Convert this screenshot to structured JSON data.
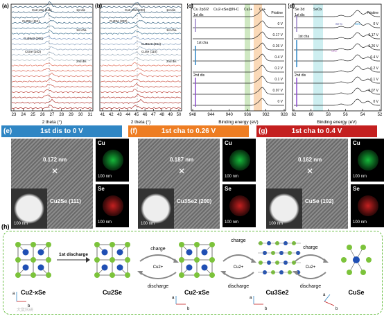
{
  "panels": {
    "a": {
      "label": "(a)",
      "xlabel": "2 theta (°)",
      "xticks": [
        "23",
        "24",
        "25",
        "26",
        "27",
        "28",
        "29",
        "30",
        "31"
      ],
      "peaks": [
        "Cu2-xSe (111)",
        "Cu2Se (111)",
        "Cu3Se2 (200)",
        "CuSe (102)"
      ],
      "stages": [
        "1st dis",
        "1st cha",
        "2nd dis"
      ]
    },
    "b": {
      "label": "(b)",
      "xlabel": "2 theta (°)",
      "xticks": [
        "41",
        "42",
        "43",
        "44",
        "45",
        "46",
        "47",
        "48",
        "49",
        "50"
      ],
      "peaks": [
        "Cu2-xSe (220)",
        "Cu2Se (220)",
        "Cu3Se2 (221)",
        "CuSe (110)"
      ],
      "stages": [
        "1st dis",
        "1st cha",
        "2nd dis"
      ]
    },
    "c": {
      "label": "(c)",
      "title": "Cu 2p3/2",
      "material": "Cu2-xSe@N-C",
      "cu2": "Cu2+",
      "cu1": "Cu+",
      "xlabel": "Binding energy (eV)",
      "xticks": [
        "948",
        "944",
        "940",
        "936",
        "932",
        "928"
      ],
      "voltages": [
        "Pristine",
        "0 V",
        "0.17 V",
        "0.26 V",
        "0.4 V",
        "0.2 V",
        "0.1 V",
        "0.07 V",
        "0 V"
      ],
      "stages": [
        "1st dis",
        "1st cha",
        "2nd dis"
      ]
    },
    "d": {
      "label": "(d)",
      "title": "Se 3d",
      "seox": "SeOx",
      "sec": "Se-C",
      "se_mid": "Se0",
      "sn": "Sn2-",
      "xlabel": "Binding energy (eV)",
      "xticks": [
        "62",
        "60",
        "58",
        "56",
        "54",
        "52"
      ],
      "voltages": [
        "Pristine",
        "0 V",
        "0.17 V",
        "0.26 V",
        "0.4 V",
        "0.2 V",
        "0.1 V",
        "0.07 V",
        "0 V"
      ],
      "stages": [
        "1st dis",
        "1st cha",
        "2nd dis"
      ]
    }
  },
  "tem": [
    {
      "label": "(e)",
      "header": "1st dis to 0 V",
      "color": "#2f86c4",
      "d": "0.172 nm",
      "phase": "Cu2Se (111)",
      "scale": "100 nm",
      "cu": "Cu",
      "se": "Se"
    },
    {
      "label": "(f)",
      "header": "1st cha to 0.26 V",
      "color": "#ee7d22",
      "d": "0.187 nm",
      "phase": "Cu3Se2 (200)",
      "scale": "100 nm",
      "cu": "Cu",
      "se": "Se"
    },
    {
      "label": "(g)",
      "header": "1st cha to 0.4 V",
      "color": "#c41f1f",
      "d": "0.162 nm",
      "phase": "CuSe (102)",
      "scale": "100 nm",
      "cu": "Cu",
      "se": "Se"
    }
  ],
  "scheme": {
    "label": "(h)",
    "first_discharge": "1st discharge",
    "charge": "charge",
    "discharge": "discharge",
    "ion": "Cu2+",
    "structures": [
      "Cu2-xSe",
      "Cu2Se",
      "Cu2-xSe",
      "Cu3Se2",
      "CuSe"
    ],
    "axes": {
      "a": "a",
      "b": "b"
    }
  },
  "colors": {
    "cu": "#1f4fb4",
    "se": "#7cc33b",
    "dash": "#6abf45",
    "blue": "#2f86c4",
    "orange": "#ee7d22",
    "red": "#c41f1f"
  },
  "watermark": "大鼠科研"
}
